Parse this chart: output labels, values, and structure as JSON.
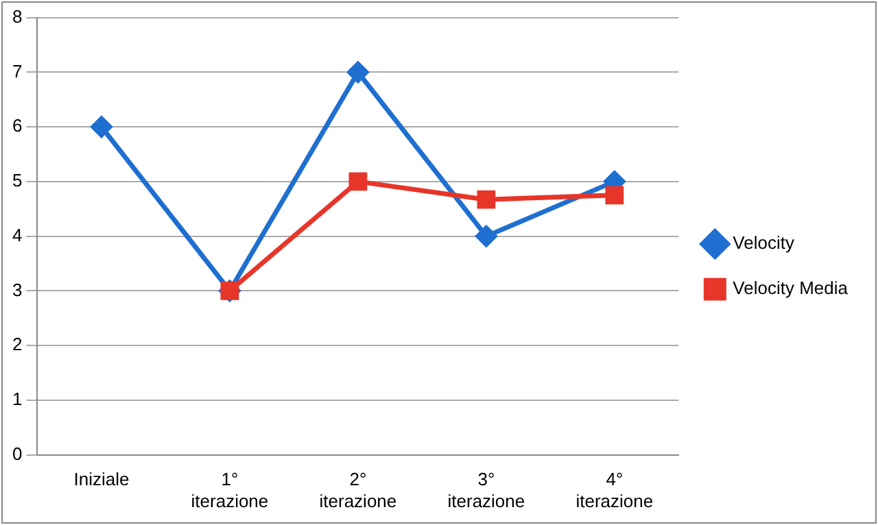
{
  "chart_data": {
    "type": "line",
    "categories": [
      "Iniziale",
      "1° iterazione",
      "2° iterazione",
      "3° iterazione",
      "4° iterazione"
    ],
    "series": [
      {
        "name": "Velocity",
        "color": "#1f6fd0",
        "marker": "diamond",
        "values": [
          6,
          3,
          7,
          4,
          5
        ]
      },
      {
        "name": "Velocity Media",
        "color": "#e8352a",
        "marker": "square",
        "values": [
          null,
          3,
          5,
          4.67,
          4.75
        ]
      }
    ],
    "ylim": [
      0,
      8
    ],
    "yticks": [
      0,
      1,
      2,
      3,
      4,
      5,
      6,
      7,
      8
    ],
    "grid": "y",
    "legend": "right",
    "line_style": "solid"
  }
}
